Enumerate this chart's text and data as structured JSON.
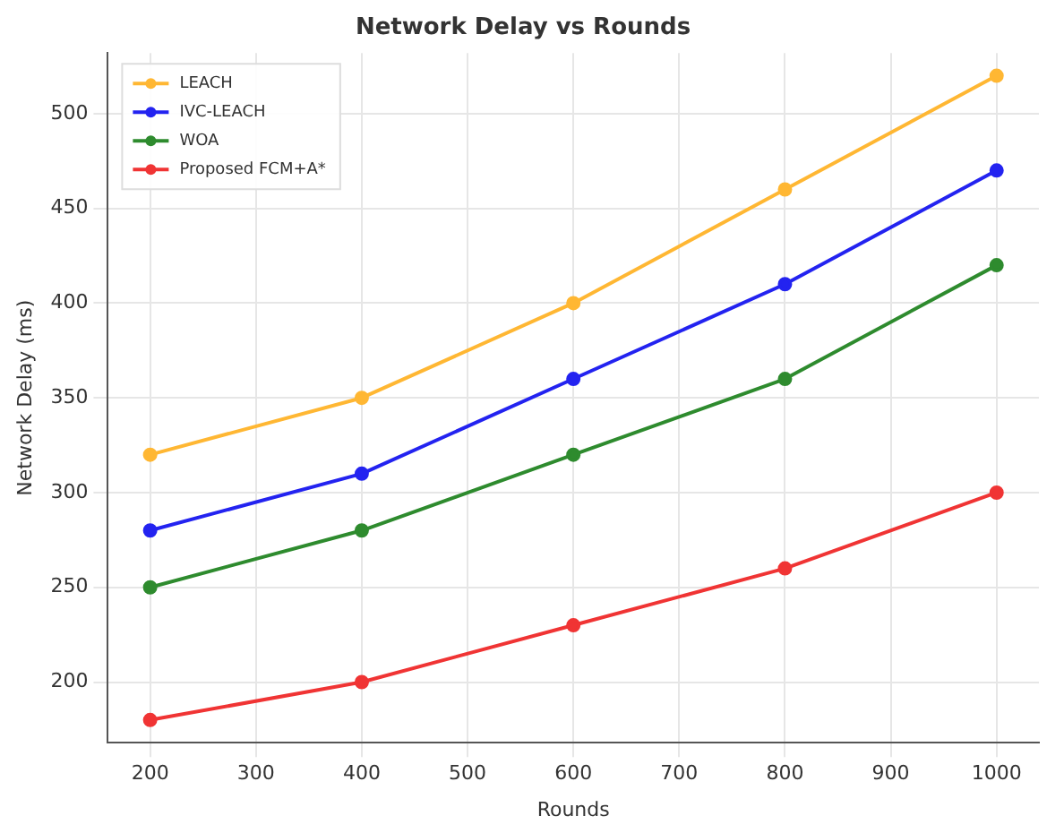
{
  "chart_data": {
    "type": "line",
    "title": "Network Delay vs Rounds",
    "xlabel": "Rounds",
    "ylabel": "Network Delay (ms)",
    "x": [
      200,
      400,
      600,
      800,
      1000
    ],
    "series": [
      {
        "name": "LEACH",
        "color": "#ffb733",
        "values": [
          320,
          350,
          400,
          460,
          520
        ]
      },
      {
        "name": "IVC-LEACH",
        "color": "#2323f0",
        "values": [
          280,
          310,
          360,
          410,
          470
        ]
      },
      {
        "name": "WOA",
        "color": "#2e8b2e",
        "values": [
          250,
          280,
          320,
          360,
          420
        ]
      },
      {
        "name": "Proposed FCM+A*",
        "color": "#f03434",
        "values": [
          180,
          200,
          230,
          260,
          300
        ]
      }
    ],
    "xlim": [
      160,
      1040
    ],
    "xticks": [
      200,
      300,
      400,
      500,
      600,
      700,
      800,
      900,
      1000
    ],
    "ylim": [
      168,
      532
    ],
    "yticks": [
      200,
      250,
      300,
      350,
      400,
      450,
      500
    ],
    "grid": true,
    "legend": "top left",
    "marker": "circle",
    "line_style": "solid"
  }
}
